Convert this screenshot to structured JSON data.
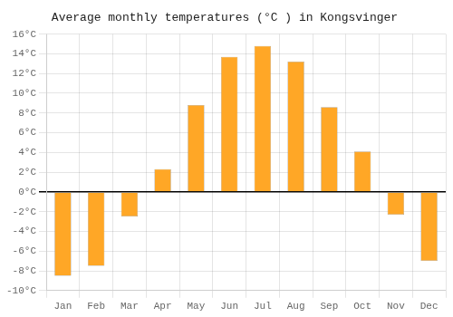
{
  "chart_data": {
    "type": "bar",
    "title": "Average monthly temperatures (°C ) in Kongsvinger",
    "categories": [
      "Jan",
      "Feb",
      "Mar",
      "Apr",
      "May",
      "Jun",
      "Jul",
      "Aug",
      "Sep",
      "Oct",
      "Nov",
      "Dec"
    ],
    "values": [
      -8.5,
      -7.5,
      -2.5,
      2.3,
      8.8,
      13.7,
      14.8,
      13.2,
      8.6,
      4.1,
      -2.3,
      -7.0
    ],
    "color": "#FFA726",
    "ylim": [
      -10,
      16
    ],
    "yticks": [
      {
        "value": -10,
        "label": "-10°C"
      },
      {
        "value": -8,
        "label": "-8°C"
      },
      {
        "value": -6,
        "label": "-6°C"
      },
      {
        "value": -4,
        "label": "-4°C"
      },
      {
        "value": -2,
        "label": "-2°C"
      },
      {
        "value": 0,
        "label": "0°C"
      },
      {
        "value": 2,
        "label": "2°C"
      },
      {
        "value": 4,
        "label": "4°C"
      },
      {
        "value": 6,
        "label": "6°C"
      },
      {
        "value": 8,
        "label": "8°C"
      },
      {
        "value": 10,
        "label": "10°C"
      },
      {
        "value": 12,
        "label": "12°C"
      },
      {
        "value": 14,
        "label": "14°C"
      },
      {
        "value": 16,
        "label": "16°C"
      }
    ],
    "grid": true
  }
}
